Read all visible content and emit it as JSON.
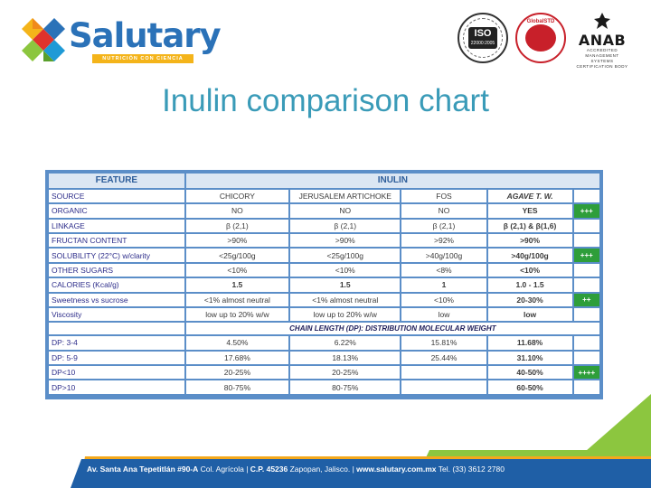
{
  "brand": {
    "name": "Salutary",
    "tagline": "NUTRICIÓN CON CIENCIA"
  },
  "certifications": {
    "iso_main": "ISO",
    "iso_code": "22000:2005",
    "globalstd": "GlobalSTD",
    "anab": "ANAB",
    "anab_sub": "ACCREDITED",
    "anab_sub2": "MANAGEMENT SYSTEMS CERTIFICATION BODY"
  },
  "title": "Inulin comparison chart",
  "table": {
    "headers": {
      "feature": "FEATURE",
      "inulin": "INULIN"
    },
    "source_row": {
      "label": "SOURCE",
      "cols": [
        "CHICORY",
        "JERUSALEM ARTICHOKE",
        "FOS",
        "AGAVE T. W."
      ]
    },
    "rows": [
      {
        "label": "ORGANIC",
        "values": [
          "NO",
          "NO",
          "NO",
          "YES"
        ],
        "note": "+++"
      },
      {
        "label": "LINKAGE",
        "values": [
          "β (2,1)",
          "β (2,1)",
          "β (2,1)",
          "β (2,1) &  β(1,6)"
        ],
        "note": ""
      },
      {
        "label": "FRUCTAN CONTENT",
        "values": [
          ">90%",
          ">90%",
          ">92%",
          ">90%"
        ],
        "note": ""
      },
      {
        "label": "SOLUBILITY (22°C) w/clarity",
        "values": [
          "<25g/100g",
          "<25g/100g",
          ">40g/100g",
          ">40g/100g"
        ],
        "note": "+++"
      },
      {
        "label": "OTHER SUGARS",
        "values": [
          "<10%",
          "<10%",
          "<8%",
          "<10%"
        ],
        "note": ""
      },
      {
        "label": "CALORIES (Kcal/g)",
        "values": [
          "1.5",
          "1.5",
          "1",
          "1.0 - 1.5"
        ],
        "note": ""
      },
      {
        "label": "Sweetness vs sucrose",
        "values": [
          "<1% almost neutral",
          "<1% almost neutral",
          "<10%",
          "20-30%"
        ],
        "note": "++"
      },
      {
        "label": "Viscosity",
        "values": [
          "low up to 20% w/w",
          "low up to 20% w/w",
          "low",
          "low"
        ],
        "note": ""
      }
    ],
    "section_title": "CHAIN LENGTH (DP): DISTRIBUTION MOLECULAR WEIGHT",
    "dp_rows": [
      {
        "label": "DP: 3-4",
        "values": [
          "4.50%",
          "6.22%",
          "15.81%",
          "11.68%"
        ],
        "note": ""
      },
      {
        "label": "DP: 5-9",
        "values": [
          "17.68%",
          "18.13%",
          "25.44%",
          "31.10%"
        ],
        "note": ""
      },
      {
        "label": "DP<10",
        "values": [
          "20-25%",
          "20-25%",
          "",
          "40-50%"
        ],
        "note": "++++"
      },
      {
        "label": "DP>10",
        "values": [
          "80-75%",
          "80-75%",
          "",
          "60-50%"
        ],
        "note": ""
      }
    ]
  },
  "footer": {
    "address": "Av. Santa Ana Tepetitlán #90-A",
    "colony": "Col. Agrícola",
    "cp": "C.P. 45236",
    "city": "Zapopan, Jalisco.",
    "web": "www.salutary.com.mx",
    "tel": "Tel. (33) 3612 2780"
  },
  "colors": {
    "title": "#3a9bb8",
    "brand_blue": "#2b72b8",
    "table_border": "#5b8ec8",
    "note_green": "#2e9e3a",
    "footer_blue": "#1f5fa6",
    "footer_orange": "#f4a81c",
    "footer_green": "#8cc63f"
  }
}
